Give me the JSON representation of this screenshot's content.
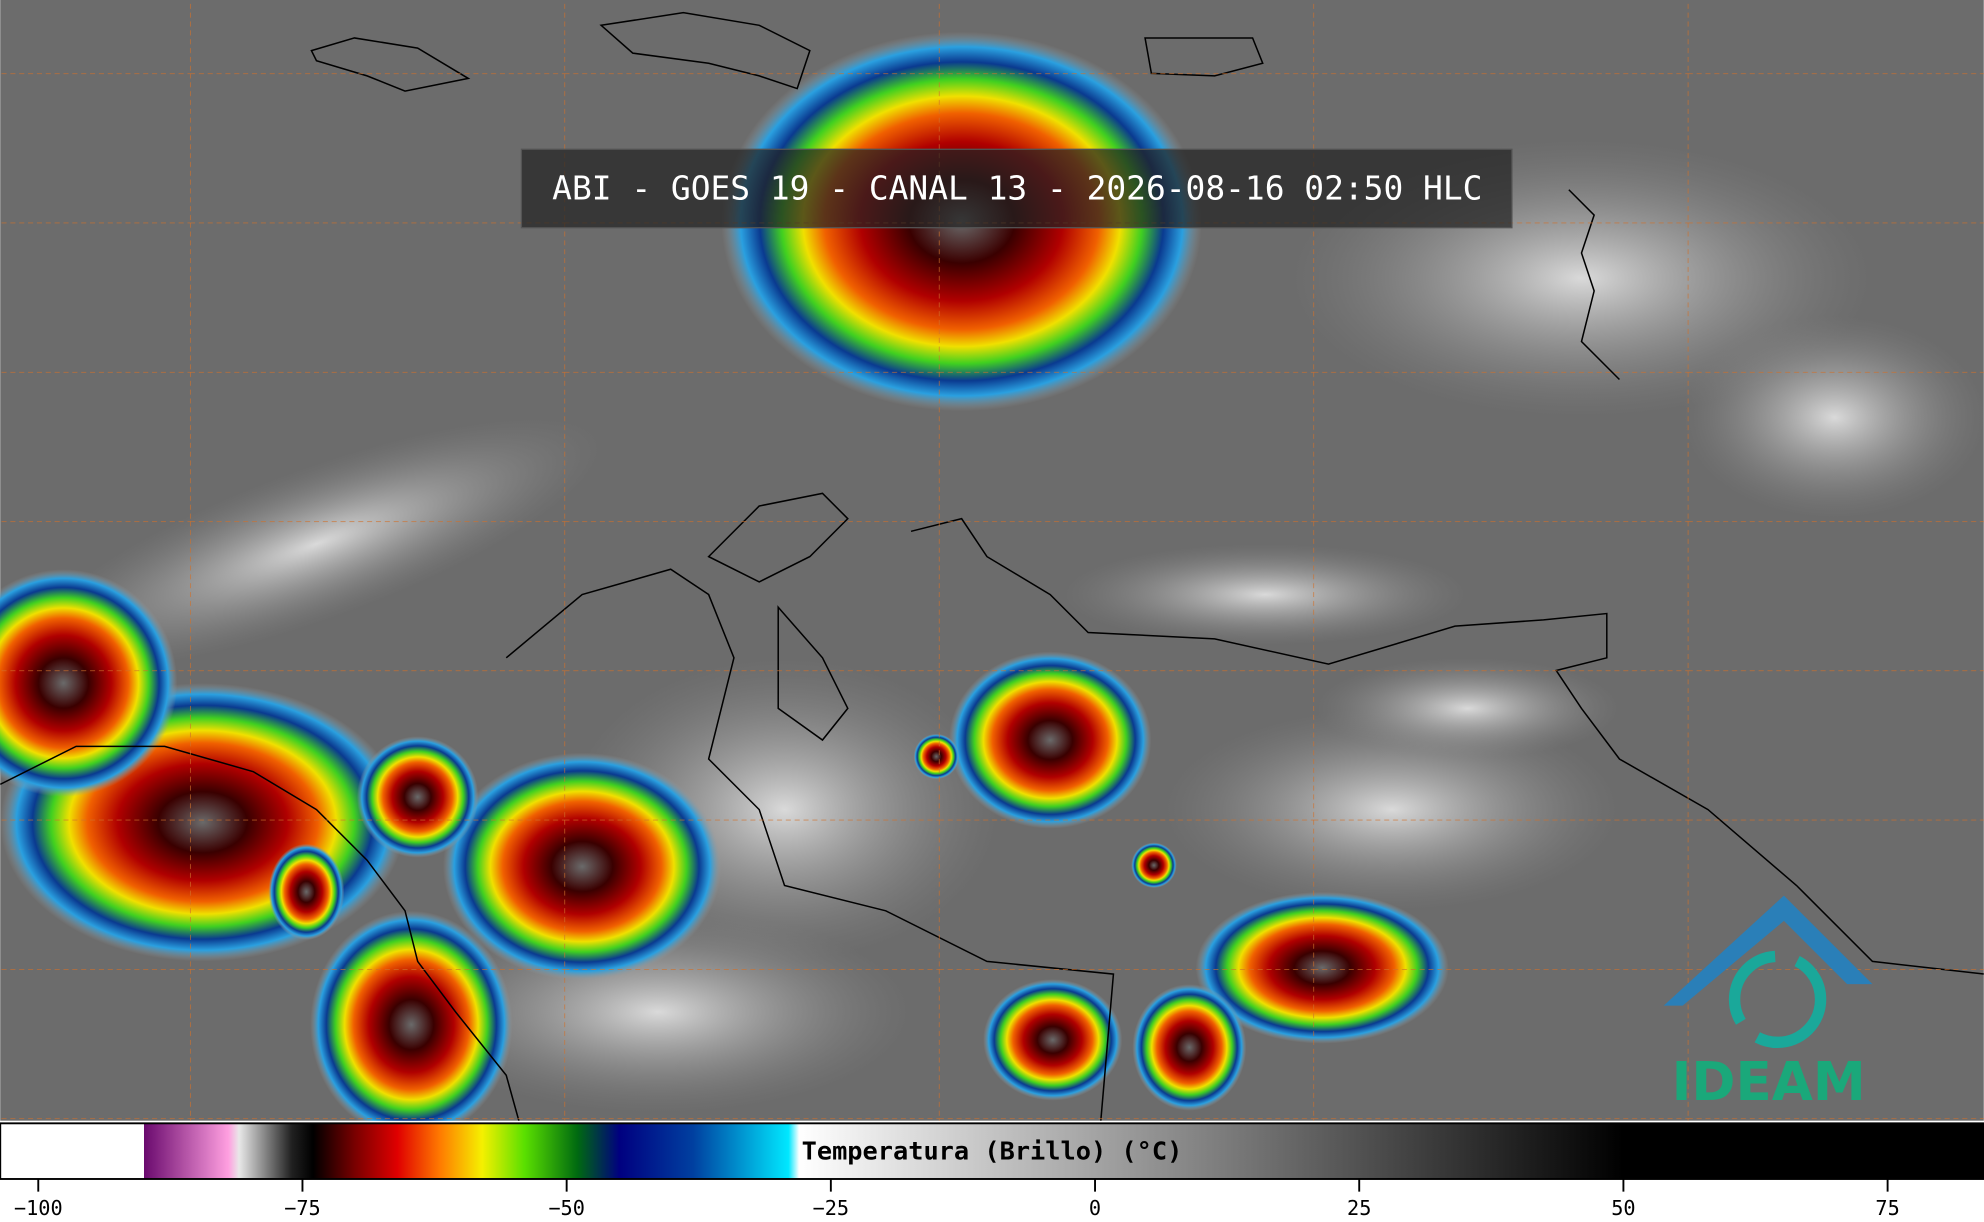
{
  "title": "ABI - GOES 19 - CANAL 13 - 2026-08-16 02:50 HLC",
  "colorbar": {
    "label": "Temperatura (Brillo) (°C)",
    "clim": [
      -103.6,
      84.1
    ],
    "ticks": [
      {
        "value": -100,
        "label": "−100"
      },
      {
        "value": -75,
        "label": "−75"
      },
      {
        "value": -50,
        "label": "−50"
      },
      {
        "value": -25,
        "label": "−25"
      },
      0,
      25,
      50,
      75
    ],
    "stops": [
      {
        "value": -90,
        "color": "#ffffff"
      },
      {
        "value": -90,
        "color": "#6a0a6e"
      },
      {
        "value": -82,
        "color": "#ff9fe0"
      },
      {
        "value": -81,
        "color": "#e8e8e8"
      },
      {
        "value": -76,
        "color": "#202020"
      },
      {
        "value": -74,
        "color": "#000000"
      },
      {
        "value": -70,
        "color": "#7a0000"
      },
      {
        "value": -66,
        "color": "#e00000"
      },
      {
        "value": -62,
        "color": "#ff7a00"
      },
      {
        "value": -58,
        "color": "#f5f000"
      },
      {
        "value": -54,
        "color": "#5ae000"
      },
      {
        "value": -49,
        "color": "#006a10"
      },
      {
        "value": -45,
        "color": "#000080"
      },
      {
        "value": -38,
        "color": "#0040a0"
      },
      {
        "value": -29,
        "color": "#00e8ff"
      },
      {
        "value": -28,
        "color": "#ffffff"
      },
      {
        "value": 50,
        "color": "#000000"
      }
    ]
  },
  "logo": "IDEAM"
}
